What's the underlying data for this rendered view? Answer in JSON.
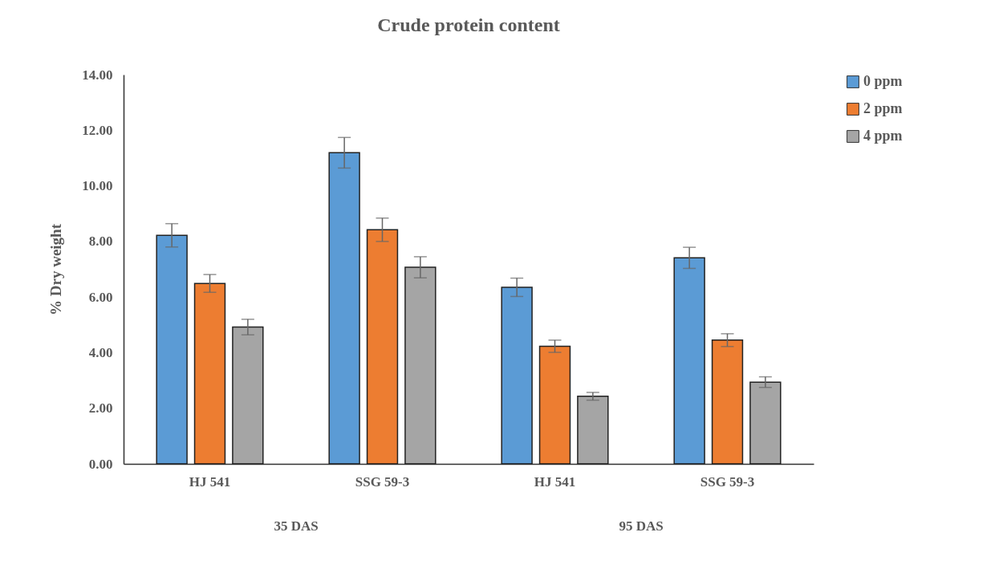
{
  "chart_data": {
    "type": "bar",
    "title": "Crude protein content",
    "ylabel": "% Dry weight",
    "categories": [
      "HJ 541",
      "SSG 59-3",
      "HJ 541",
      "SSG 59-3"
    ],
    "annotations": [
      "35 DAS",
      "95 DAS"
    ],
    "series": [
      {
        "name": "0 ppm",
        "color": "#5b9bd5",
        "values": [
          8.22,
          11.19,
          6.35,
          7.41
        ],
        "errors": [
          0.42,
          0.55,
          0.33,
          0.38
        ]
      },
      {
        "name": "2 ppm",
        "color": "#ed7d31",
        "values": [
          6.49,
          8.42,
          4.23,
          4.45
        ],
        "errors": [
          0.32,
          0.42,
          0.22,
          0.23
        ]
      },
      {
        "name": "4 ppm",
        "color": "#a5a5a5",
        "values": [
          4.92,
          7.07,
          2.43,
          2.94
        ],
        "errors": [
          0.28,
          0.38,
          0.14,
          0.19
        ]
      }
    ],
    "ylim": [
      0,
      14
    ],
    "yticks": [
      {
        "value": 0,
        "label": "0.00"
      },
      {
        "value": 2,
        "label": "2.00"
      },
      {
        "value": 4,
        "label": "4.00"
      },
      {
        "value": 6,
        "label": "6.00"
      },
      {
        "value": 8,
        "label": "8.00"
      },
      {
        "value": 10,
        "label": "10.00"
      },
      {
        "value": 12,
        "label": "12.00"
      },
      {
        "value": 14,
        "label": "14.00"
      }
    ],
    "grid": false,
    "legend": "right"
  }
}
